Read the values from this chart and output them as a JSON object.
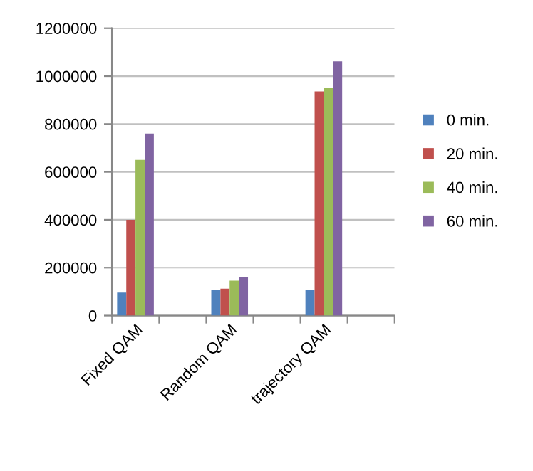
{
  "chart_data": {
    "type": "bar",
    "categories": [
      "Fixed QAM",
      null,
      "Random QAM",
      null,
      "trajectory QAM",
      null
    ],
    "series": [
      {
        "name": "0 min.",
        "color": "#4f81bd",
        "values": [
          96000,
          null,
          106000,
          null,
          108000,
          null
        ]
      },
      {
        "name": "20 min.",
        "color": "#c0504d",
        "values": [
          400000,
          null,
          112000,
          null,
          936000,
          null
        ]
      },
      {
        "name": "40 min.",
        "color": "#9bbb59",
        "values": [
          650000,
          null,
          146000,
          null,
          950000,
          null
        ]
      },
      {
        "name": "60 min.",
        "color": "#8064a2",
        "values": [
          760000,
          null,
          162000,
          null,
          1062000,
          null
        ]
      }
    ],
    "ylim": [
      0,
      1200000
    ],
    "yticks": [
      0,
      200000,
      400000,
      600000,
      800000,
      1000000,
      1200000
    ],
    "grid": "y",
    "legend": "right"
  }
}
